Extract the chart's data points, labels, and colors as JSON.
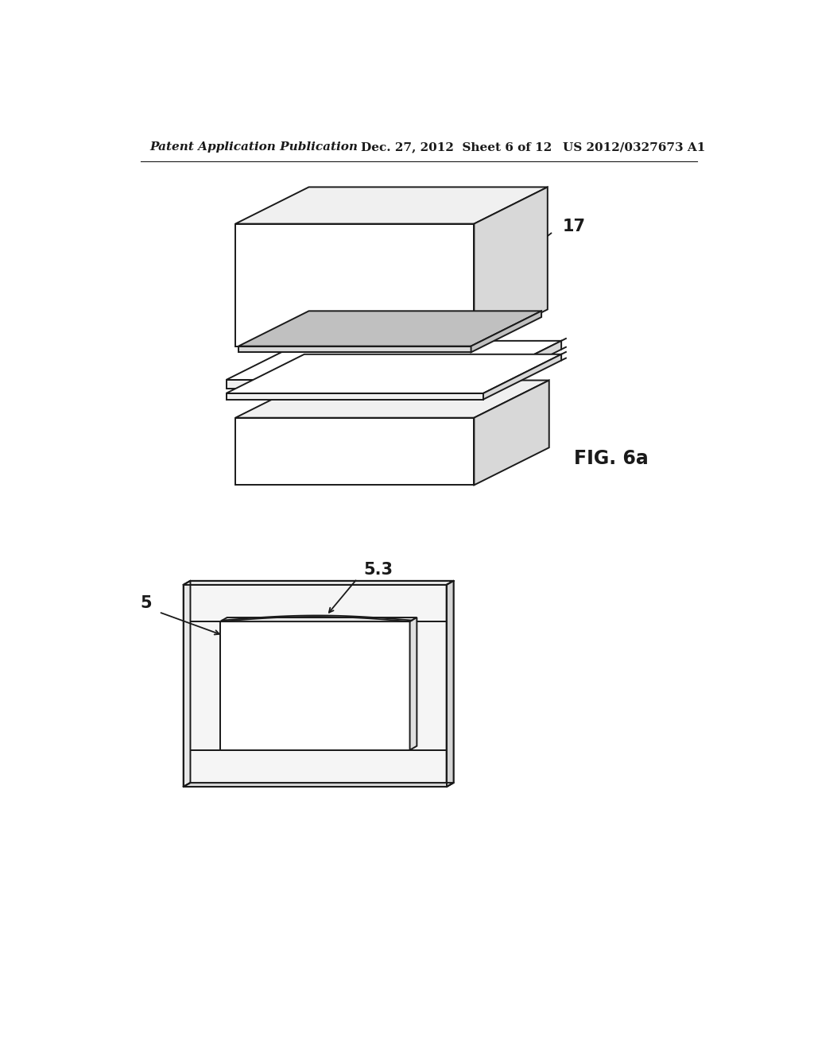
{
  "header_left": "Patent Application Publication",
  "header_mid": "Dec. 27, 2012  Sheet 6 of 12",
  "header_right": "US 2012/0327673 A1",
  "fig_label": "FIG. 6a",
  "label_17": "17",
  "label_5": "5",
  "label_5_3": "5.3",
  "bg_color": "#ffffff",
  "line_color": "#1a1a1a",
  "line_width": 1.4,
  "header_fontsize": 11,
  "fig_label_fontsize": 17,
  "ref_label_fontsize": 15
}
